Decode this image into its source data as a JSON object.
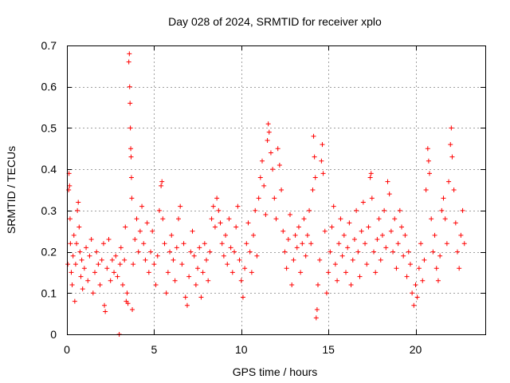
{
  "chart_data": {
    "type": "scatter",
    "title": "Day 028 of 2024, SRMTID for receiver xplo",
    "xlabel": "GPS time / hours",
    "ylabel": "SRMTID / TECUs",
    "xlim": [
      0,
      24
    ],
    "ylim": [
      0,
      0.7
    ],
    "x_ticks": [
      0,
      5,
      10,
      15,
      20
    ],
    "x_tick_labels": [
      "0",
      "5",
      "10",
      "15",
      "20"
    ],
    "y_ticks": [
      0,
      0.1,
      0.2,
      0.3,
      0.4,
      0.5,
      0.6,
      0.7
    ],
    "y_tick_labels": [
      "0",
      "0.1",
      "0.2",
      "0.3",
      "0.4",
      "0.5",
      "0.6",
      "0.7"
    ],
    "grid": true,
    "series": [
      {
        "name": "SRMTID",
        "color": "#ff0000",
        "marker": "plus",
        "points": [
          [
            0.05,
            0.17
          ],
          [
            0.1,
            0.35
          ],
          [
            0.12,
            0.39
          ],
          [
            0.15,
            0.36
          ],
          [
            0.18,
            0.28
          ],
          [
            0.2,
            0.22
          ],
          [
            0.25,
            0.15
          ],
          [
            0.3,
            0.12
          ],
          [
            0.35,
            0.19
          ],
          [
            0.4,
            0.24
          ],
          [
            0.45,
            0.08
          ],
          [
            0.5,
            0.17
          ],
          [
            0.55,
            0.22
          ],
          [
            0.6,
            0.3
          ],
          [
            0.65,
            0.32
          ],
          [
            0.7,
            0.26
          ],
          [
            0.75,
            0.2
          ],
          [
            0.8,
            0.14
          ],
          [
            0.85,
            0.18
          ],
          [
            0.9,
            0.11
          ],
          [
            1.0,
            0.16
          ],
          [
            1.1,
            0.21
          ],
          [
            1.2,
            0.13
          ],
          [
            1.3,
            0.19
          ],
          [
            1.4,
            0.23
          ],
          [
            1.5,
            0.1
          ],
          [
            1.6,
            0.15
          ],
          [
            1.7,
            0.2
          ],
          [
            1.8,
            0.17
          ],
          [
            1.9,
            0.12
          ],
          [
            2.0,
            0.18
          ],
          [
            2.1,
            0.22
          ],
          [
            2.15,
            0.07
          ],
          [
            2.2,
            0.055
          ],
          [
            2.3,
            0.16
          ],
          [
            2.4,
            0.23
          ],
          [
            2.5,
            0.13
          ],
          [
            2.6,
            0.18
          ],
          [
            2.7,
            0.15
          ],
          [
            2.8,
            0.19
          ],
          [
            2.9,
            0.14
          ],
          [
            3.0,
            0.0
          ],
          [
            3.05,
            0.17
          ],
          [
            3.1,
            0.21
          ],
          [
            3.2,
            0.12
          ],
          [
            3.3,
            0.18
          ],
          [
            3.35,
            0.26
          ],
          [
            3.4,
            0.08
          ],
          [
            3.45,
            0.1
          ],
          [
            3.5,
            0.075
          ],
          [
            3.55,
            0.66
          ],
          [
            3.58,
            0.68
          ],
          [
            3.6,
            0.6
          ],
          [
            3.62,
            0.56
          ],
          [
            3.64,
            0.5
          ],
          [
            3.66,
            0.45
          ],
          [
            3.68,
            0.43
          ],
          [
            3.7,
            0.38
          ],
          [
            3.72,
            0.33
          ],
          [
            3.75,
            0.06
          ],
          [
            3.8,
            0.17
          ],
          [
            3.9,
            0.23
          ],
          [
            4.0,
            0.28
          ],
          [
            4.1,
            0.2
          ],
          [
            4.2,
            0.25
          ],
          [
            4.3,
            0.31
          ],
          [
            4.4,
            0.22
          ],
          [
            4.5,
            0.18
          ],
          [
            4.6,
            0.27
          ],
          [
            4.7,
            0.15
          ],
          [
            4.8,
            0.2
          ],
          [
            4.9,
            0.25
          ],
          [
            5.0,
            0.17
          ],
          [
            5.1,
            0.12
          ],
          [
            5.2,
            0.19
          ],
          [
            5.3,
            0.3
          ],
          [
            5.4,
            0.36
          ],
          [
            5.45,
            0.37
          ],
          [
            5.5,
            0.28
          ],
          [
            5.6,
            0.22
          ],
          [
            5.7,
            0.1
          ],
          [
            5.8,
            0.15
          ],
          [
            5.9,
            0.2
          ],
          [
            6.0,
            0.24
          ],
          [
            6.1,
            0.18
          ],
          [
            6.2,
            0.13
          ],
          [
            6.3,
            0.21
          ],
          [
            6.4,
            0.28
          ],
          [
            6.5,
            0.31
          ],
          [
            6.6,
            0.17
          ],
          [
            6.7,
            0.22
          ],
          [
            6.8,
            0.09
          ],
          [
            6.9,
            0.07
          ],
          [
            7.0,
            0.14
          ],
          [
            7.1,
            0.2
          ],
          [
            7.2,
            0.25
          ],
          [
            7.3,
            0.19
          ],
          [
            7.4,
            0.12
          ],
          [
            7.5,
            0.16
          ],
          [
            7.6,
            0.21
          ],
          [
            7.7,
            0.09
          ],
          [
            7.8,
            0.15
          ],
          [
            7.9,
            0.22
          ],
          [
            8.0,
            0.18
          ],
          [
            8.1,
            0.13
          ],
          [
            8.2,
            0.2
          ],
          [
            8.3,
            0.28
          ],
          [
            8.4,
            0.31
          ],
          [
            8.5,
            0.26
          ],
          [
            8.6,
            0.33
          ],
          [
            8.7,
            0.3
          ],
          [
            8.8,
            0.27
          ],
          [
            8.9,
            0.22
          ],
          [
            9.0,
            0.19
          ],
          [
            9.1,
            0.24
          ],
          [
            9.2,
            0.17
          ],
          [
            9.3,
            0.28
          ],
          [
            9.4,
            0.21
          ],
          [
            9.5,
            0.15
          ],
          [
            9.6,
            0.2
          ],
          [
            9.7,
            0.26
          ],
          [
            9.8,
            0.31
          ],
          [
            9.9,
            0.18
          ],
          [
            10.0,
            0.13
          ],
          [
            10.1,
            0.09
          ],
          [
            10.2,
            0.16
          ],
          [
            10.3,
            0.22
          ],
          [
            10.4,
            0.27
          ],
          [
            10.5,
            0.2
          ],
          [
            10.6,
            0.15
          ],
          [
            10.7,
            0.24
          ],
          [
            10.8,
            0.3
          ],
          [
            10.9,
            0.19
          ],
          [
            11.0,
            0.33
          ],
          [
            11.1,
            0.38
          ],
          [
            11.2,
            0.42
          ],
          [
            11.3,
            0.36
          ],
          [
            11.4,
            0.29
          ],
          [
            11.5,
            0.47
          ],
          [
            11.55,
            0.51
          ],
          [
            11.6,
            0.49
          ],
          [
            11.7,
            0.44
          ],
          [
            11.8,
            0.4
          ],
          [
            11.9,
            0.33
          ],
          [
            12.0,
            0.28
          ],
          [
            12.1,
            0.45
          ],
          [
            12.2,
            0.41
          ],
          [
            12.3,
            0.35
          ],
          [
            12.4,
            0.25
          ],
          [
            12.5,
            0.2
          ],
          [
            12.6,
            0.16
          ],
          [
            12.7,
            0.23
          ],
          [
            12.8,
            0.29
          ],
          [
            12.9,
            0.12
          ],
          [
            13.0,
            0.18
          ],
          [
            13.1,
            0.24
          ],
          [
            13.2,
            0.21
          ],
          [
            13.3,
            0.26
          ],
          [
            13.4,
            0.15
          ],
          [
            13.5,
            0.22
          ],
          [
            13.6,
            0.28
          ],
          [
            13.7,
            0.19
          ],
          [
            13.8,
            0.24
          ],
          [
            13.9,
            0.3
          ],
          [
            14.0,
            0.22
          ],
          [
            14.1,
            0.35
          ],
          [
            14.15,
            0.48
          ],
          [
            14.2,
            0.43
          ],
          [
            14.25,
            0.38
          ],
          [
            14.3,
            0.04
          ],
          [
            14.35,
            0.06
          ],
          [
            14.4,
            0.12
          ],
          [
            14.5,
            0.18
          ],
          [
            14.6,
            0.42
          ],
          [
            14.65,
            0.46
          ],
          [
            14.7,
            0.39
          ],
          [
            14.8,
            0.25
          ],
          [
            14.9,
            0.1
          ],
          [
            15.0,
            0.15
          ],
          [
            15.1,
            0.2
          ],
          [
            15.2,
            0.26
          ],
          [
            15.3,
            0.31
          ],
          [
            15.4,
            0.17
          ],
          [
            15.5,
            0.13
          ],
          [
            15.6,
            0.22
          ],
          [
            15.7,
            0.28
          ],
          [
            15.8,
            0.19
          ],
          [
            15.9,
            0.24
          ],
          [
            16.0,
            0.15
          ],
          [
            16.1,
            0.21
          ],
          [
            16.2,
            0.27
          ],
          [
            16.3,
            0.12
          ],
          [
            16.4,
            0.18
          ],
          [
            16.5,
            0.23
          ],
          [
            16.6,
            0.3
          ],
          [
            16.7,
            0.2
          ],
          [
            16.8,
            0.14
          ],
          [
            16.9,
            0.25
          ],
          [
            17.0,
            0.32
          ],
          [
            17.1,
            0.22
          ],
          [
            17.2,
            0.17
          ],
          [
            17.3,
            0.26
          ],
          [
            17.4,
            0.38
          ],
          [
            17.45,
            0.39
          ],
          [
            17.5,
            0.33
          ],
          [
            17.6,
            0.2
          ],
          [
            17.7,
            0.15
          ],
          [
            17.8,
            0.23
          ],
          [
            17.9,
            0.28
          ],
          [
            18.0,
            0.18
          ],
          [
            18.1,
            0.24
          ],
          [
            18.2,
            0.3
          ],
          [
            18.3,
            0.21
          ],
          [
            18.4,
            0.37
          ],
          [
            18.5,
            0.34
          ],
          [
            18.6,
            0.25
          ],
          [
            18.7,
            0.2
          ],
          [
            18.8,
            0.28
          ],
          [
            18.9,
            0.16
          ],
          [
            19.0,
            0.22
          ],
          [
            19.1,
            0.3
          ],
          [
            19.2,
            0.26
          ],
          [
            19.3,
            0.19
          ],
          [
            19.4,
            0.24
          ],
          [
            19.5,
            0.14
          ],
          [
            19.6,
            0.2
          ],
          [
            19.7,
            0.17
          ],
          [
            19.8,
            0.1
          ],
          [
            19.9,
            0.07
          ],
          [
            20.0,
            0.12
          ],
          [
            20.1,
            0.09
          ],
          [
            20.2,
            0.16
          ],
          [
            20.3,
            0.22
          ],
          [
            20.4,
            0.13
          ],
          [
            20.5,
            0.18
          ],
          [
            20.6,
            0.35
          ],
          [
            20.7,
            0.45
          ],
          [
            20.75,
            0.42
          ],
          [
            20.8,
            0.39
          ],
          [
            20.9,
            0.28
          ],
          [
            21.0,
            0.2
          ],
          [
            21.1,
            0.24
          ],
          [
            21.2,
            0.16
          ],
          [
            21.3,
            0.13
          ],
          [
            21.4,
            0.19
          ],
          [
            21.5,
            0.3
          ],
          [
            21.6,
            0.33
          ],
          [
            21.7,
            0.28
          ],
          [
            21.8,
            0.22
          ],
          [
            21.9,
            0.37
          ],
          [
            22.0,
            0.46
          ],
          [
            22.05,
            0.5
          ],
          [
            22.1,
            0.43
          ],
          [
            22.2,
            0.35
          ],
          [
            22.3,
            0.27
          ],
          [
            22.4,
            0.2
          ],
          [
            22.5,
            0.16
          ],
          [
            22.6,
            0.24
          ],
          [
            22.7,
            0.3
          ],
          [
            22.8,
            0.22
          ]
        ]
      }
    ]
  }
}
